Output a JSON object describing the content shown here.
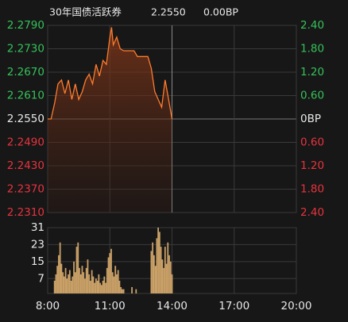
{
  "header": {
    "title": "30年国债活跃券",
    "price": {
      "value": 2.255,
      "label": "2.2550"
    },
    "change": "0.00BP"
  },
  "chart_data": [
    {
      "type": "line",
      "color": "#ff7b2c",
      "up_color": "#35c25a",
      "down_color": "#e8333d",
      "base_color": "#e8e8e8",
      "grid": true,
      "x": [
        0,
        10,
        20,
        30,
        40,
        50,
        60,
        70,
        80,
        90,
        100,
        110,
        120,
        130,
        140,
        150,
        160,
        170,
        180,
        185,
        190,
        200,
        210,
        220,
        230,
        240,
        250,
        260,
        270,
        280,
        290,
        300,
        310,
        320,
        330,
        340,
        350,
        360
      ],
      "values": [
        2.255,
        2.255,
        2.259,
        2.264,
        2.265,
        2.2615,
        2.265,
        2.26,
        2.264,
        2.26,
        2.262,
        2.265,
        2.2665,
        2.264,
        2.269,
        2.266,
        2.27,
        2.269,
        2.276,
        2.2785,
        2.274,
        2.276,
        2.273,
        2.2725,
        2.2725,
        2.2725,
        2.2725,
        2.271,
        2.271,
        2.271,
        2.271,
        2.268,
        2.262,
        2.26,
        2.258,
        2.265,
        2.26,
        2.255
      ],
      "xlim": [
        0,
        720
      ],
      "xticks": [
        {
          "value": 0,
          "label": "8:00"
        },
        {
          "value": 180,
          "label": "11:00"
        },
        {
          "value": 360,
          "label": "14:00"
        },
        {
          "value": 540,
          "label": "17:00"
        },
        {
          "value": 720,
          "label": "20:00"
        }
      ],
      "ylim": [
        2.231,
        2.279
      ],
      "yticks": [
        {
          "value": 2.279,
          "label": "2.2790"
        },
        {
          "value": 2.273,
          "label": "2.2730"
        },
        {
          "value": 2.267,
          "label": "2.2670"
        },
        {
          "value": 2.261,
          "label": "2.2610"
        },
        {
          "value": 2.255,
          "label": "2.2550"
        },
        {
          "value": 2.249,
          "label": "2.2490"
        },
        {
          "value": 2.243,
          "label": "2.2430"
        },
        {
          "value": 2.237,
          "label": "2.2370"
        },
        {
          "value": 2.231,
          "label": "2.2310"
        }
      ],
      "y2lim": [
        -2.4,
        2.4
      ],
      "y2ticks": [
        {
          "value": 2.4,
          "label": "2.40"
        },
        {
          "value": 1.8,
          "label": "1.80"
        },
        {
          "value": 1.2,
          "label": "1.20"
        },
        {
          "value": 0.6,
          "label": "0.60"
        },
        {
          "value": 0,
          "label": "0BP"
        },
        {
          "value": -0.6,
          "label": "0.60"
        },
        {
          "value": -1.2,
          "label": "1.20"
        },
        {
          "value": -1.8,
          "label": "1.80"
        },
        {
          "value": -2.4,
          "label": "2.40"
        }
      ]
    },
    {
      "type": "bar",
      "color": "#c9a067",
      "grid": true,
      "x": [
        20,
        24,
        28,
        32,
        36,
        40,
        44,
        48,
        52,
        56,
        60,
        64,
        68,
        72,
        76,
        80,
        84,
        88,
        92,
        96,
        100,
        104,
        108,
        112,
        116,
        120,
        124,
        128,
        132,
        136,
        140,
        144,
        148,
        152,
        156,
        160,
        164,
        168,
        172,
        176,
        180,
        184,
        188,
        192,
        196,
        200,
        204,
        208,
        212,
        216,
        220,
        244,
        256,
        300,
        304,
        308,
        312,
        316,
        320,
        324,
        328,
        332,
        336,
        340,
        344,
        348,
        352,
        356,
        360
      ],
      "values": [
        6,
        9,
        13,
        18,
        24,
        14,
        10,
        8,
        12,
        7,
        9,
        11,
        6,
        8,
        15,
        10,
        22,
        24,
        12,
        9,
        13,
        10,
        7,
        12,
        16,
        9,
        6,
        11,
        8,
        5,
        7,
        6,
        9,
        5,
        4,
        6,
        8,
        5,
        12,
        17,
        19,
        21,
        10,
        8,
        13,
        9,
        11,
        6,
        3,
        2,
        2,
        3,
        2,
        20,
        24,
        18,
        13,
        26,
        31,
        29,
        22,
        16,
        12,
        22,
        14,
        24,
        18,
        15,
        9
      ],
      "xlim": [
        0,
        720
      ],
      "ylim": [
        0,
        31
      ],
      "yticks": [
        31,
        23,
        15,
        7
      ]
    }
  ]
}
